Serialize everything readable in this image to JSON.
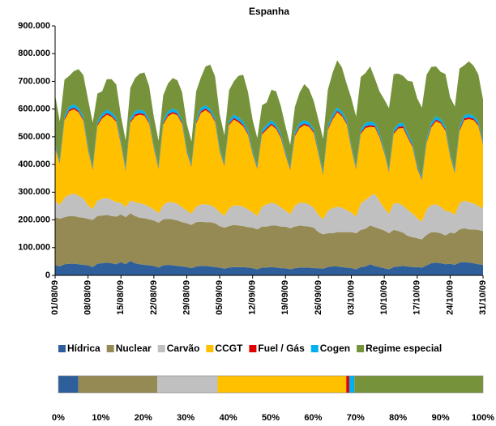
{
  "chart_data": [
    {
      "type": "stacked_area",
      "title": "Espanha",
      "categories": [
        "01/08/09",
        null,
        null,
        null,
        null,
        null,
        null,
        "08/08/09",
        null,
        null,
        null,
        null,
        null,
        null,
        "15/08/09",
        null,
        null,
        null,
        null,
        null,
        null,
        "22/08/09",
        null,
        null,
        null,
        null,
        null,
        null,
        "29/08/09",
        null,
        null,
        null,
        null,
        null,
        null,
        "05/09/09",
        null,
        null,
        null,
        null,
        null,
        null,
        "12/09/09",
        null,
        null,
        null,
        null,
        null,
        null,
        "19/09/09",
        null,
        null,
        null,
        null,
        null,
        null,
        "26/09/09",
        null,
        null,
        null,
        null,
        null,
        null,
        "03/10/09",
        null,
        null,
        null,
        null,
        null,
        null,
        "10/10/09",
        null,
        null,
        null,
        null,
        null,
        null,
        "17/10/09",
        null,
        null,
        null,
        null,
        null,
        null,
        "24/10/09",
        null,
        null,
        null,
        null,
        null,
        null,
        "31/10/09"
      ],
      "ylim": [
        0,
        900000
      ],
      "yticks": [
        {
          "value": 0,
          "label": "0"
        },
        {
          "value": 100000,
          "label": "100.000"
        },
        {
          "value": 200000,
          "label": "200.000"
        },
        {
          "value": 300000,
          "label": "300.000"
        },
        {
          "value": 400000,
          "label": "400.000"
        },
        {
          "value": 500000,
          "label": "500.000"
        },
        {
          "value": 600000,
          "label": "600.000"
        },
        {
          "value": 700000,
          "label": "700.000"
        },
        {
          "value": 800000,
          "label": "800.000"
        },
        {
          "value": 900000,
          "label": "900.000"
        }
      ],
      "grid": false,
      "legend": "bottom",
      "series": [
        {
          "name": "Hídrica",
          "color": "#2e5f9a",
          "values": [
            38000,
            32000,
            40000,
            42000,
            42000,
            40000,
            38000,
            36000,
            30000,
            42000,
            44000,
            46000,
            44000,
            40000,
            48000,
            40000,
            52000,
            44000,
            40000,
            38000,
            36000,
            34000,
            28000,
            36000,
            38000,
            36000,
            34000,
            32000,
            30000,
            26000,
            32000,
            34000,
            34000,
            32000,
            30000,
            28000,
            24000,
            28000,
            30000,
            30000,
            30000,
            28000,
            26000,
            22000,
            28000,
            28000,
            30000,
            28000,
            26000,
            26000,
            22000,
            26000,
            28000,
            28000,
            28000,
            26000,
            26000,
            24000,
            30000,
            32000,
            32000,
            30000,
            28000,
            26000,
            22000,
            30000,
            32000,
            40000,
            34000,
            30000,
            26000,
            22000,
            30000,
            32000,
            34000,
            32000,
            30000,
            30000,
            28000,
            36000,
            44000,
            46000,
            44000,
            40000,
            42000,
            38000,
            46000,
            48000,
            46000,
            44000,
            40000,
            38000
          ]
        },
        {
          "name": "Nuclear",
          "color": "#958a54",
          "values": [
            172000,
            172000,
            170000,
            172000,
            172000,
            170000,
            170000,
            168000,
            170000,
            172000,
            172000,
            172000,
            170000,
            172000,
            172000,
            170000,
            172000,
            170000,
            168000,
            168000,
            166000,
            164000,
            162000,
            166000,
            166000,
            166000,
            164000,
            160000,
            158000,
            156000,
            160000,
            160000,
            158000,
            160000,
            158000,
            150000,
            148000,
            150000,
            152000,
            150000,
            148000,
            146000,
            146000,
            144000,
            148000,
            148000,
            150000,
            152000,
            150000,
            150000,
            148000,
            150000,
            152000,
            150000,
            148000,
            146000,
            130000,
            124000,
            122000,
            120000,
            124000,
            126000,
            128000,
            130000,
            130000,
            134000,
            136000,
            140000,
            140000,
            138000,
            136000,
            130000,
            134000,
            128000,
            120000,
            110000,
            108000,
            104000,
            102000,
            110000,
            112000,
            110000,
            108000,
            104000,
            112000,
            114000,
            120000,
            122000,
            120000,
            122000,
            124000,
            122000
          ]
        },
        {
          "name": "Carvão",
          "color": "#c0c0c0",
          "values": [
            58000,
            50000,
            70000,
            78000,
            80000,
            78000,
            70000,
            48000,
            40000,
            56000,
            60000,
            62000,
            58000,
            52000,
            42000,
            36000,
            46000,
            50000,
            52000,
            50000,
            46000,
            40000,
            34000,
            52000,
            60000,
            62000,
            60000,
            54000,
            46000,
            40000,
            56000,
            62000,
            64000,
            62000,
            56000,
            50000,
            42000,
            64000,
            70000,
            72000,
            70000,
            64000,
            56000,
            48000,
            72000,
            80000,
            82000,
            78000,
            70000,
            58000,
            50000,
            76000,
            82000,
            84000,
            80000,
            72000,
            62000,
            54000,
            82000,
            90000,
            92000,
            88000,
            80000,
            70000,
            60000,
            96000,
            104000,
            106000,
            120000,
            100000,
            80000,
            70000,
            96000,
            100000,
            98000,
            94000,
            86000,
            72000,
            64000,
            92000,
            98000,
            100000,
            96000,
            88000,
            76000,
            66000,
            94000,
            100000,
            98000,
            94000,
            86000,
            82000
          ]
        },
        {
          "name": "CCGT",
          "color": "#ffc000",
          "values": [
            190000,
            150000,
            280000,
            300000,
            305000,
            300000,
            280000,
            200000,
            140000,
            270000,
            290000,
            300000,
            300000,
            290000,
            210000,
            130000,
            280000,
            310000,
            320000,
            320000,
            300000,
            220000,
            160000,
            290000,
            310000,
            320000,
            320000,
            300000,
            210000,
            170000,
            300000,
            330000,
            340000,
            330000,
            310000,
            220000,
            180000,
            300000,
            310000,
            300000,
            290000,
            270000,
            210000,
            170000,
            260000,
            270000,
            280000,
            270000,
            250000,
            200000,
            160000,
            250000,
            270000,
            280000,
            280000,
            270000,
            220000,
            160000,
            290000,
            320000,
            340000,
            330000,
            310000,
            230000,
            170000,
            250000,
            260000,
            250000,
            240000,
            230000,
            200000,
            150000,
            250000,
            270000,
            280000,
            260000,
            240000,
            180000,
            150000,
            240000,
            280000,
            300000,
            300000,
            290000,
            200000,
            150000,
            260000,
            290000,
            300000,
            300000,
            290000,
            230000
          ]
        },
        {
          "name": "Fuel / Gás",
          "color": "#e00000",
          "values": [
            4000,
            3000,
            5000,
            6000,
            6000,
            5000,
            5000,
            4000,
            3000,
            5000,
            6000,
            6000,
            5000,
            5000,
            4000,
            3000,
            5000,
            6000,
            6000,
            5000,
            5000,
            4000,
            3000,
            5000,
            6000,
            6000,
            5000,
            5000,
            4000,
            3000,
            5000,
            6000,
            6000,
            5000,
            5000,
            4000,
            3000,
            5000,
            6000,
            6000,
            5000,
            5000,
            4000,
            3000,
            5000,
            6000,
            6000,
            5000,
            5000,
            4000,
            3000,
            5000,
            6000,
            6000,
            5000,
            5000,
            4000,
            3000,
            5000,
            6000,
            6000,
            5000,
            5000,
            4000,
            3000,
            5000,
            6000,
            6000,
            5000,
            5000,
            4000,
            3000,
            5000,
            6000,
            6000,
            5000,
            5000,
            4000,
            3000,
            5000,
            6000,
            6000,
            5000,
            5000,
            4000,
            3000,
            5000,
            6000,
            6000,
            5000,
            5000,
            4000
          ]
        },
        {
          "name": "Cogen",
          "color": "#00b0f0",
          "values": [
            9000,
            8000,
            11000,
            12000,
            12000,
            11000,
            10000,
            9000,
            8000,
            11000,
            12000,
            12000,
            11000,
            10000,
            9000,
            8000,
            11000,
            12000,
            12000,
            11000,
            10000,
            9000,
            8000,
            11000,
            12000,
            12000,
            11000,
            10000,
            9000,
            8000,
            11000,
            12000,
            12000,
            11000,
            10000,
            9000,
            8000,
            11000,
            12000,
            12000,
            11000,
            10000,
            9000,
            8000,
            11000,
            12000,
            12000,
            11000,
            10000,
            9000,
            8000,
            11000,
            12000,
            12000,
            11000,
            10000,
            9000,
            8000,
            11000,
            12000,
            12000,
            11000,
            10000,
            9000,
            8000,
            11000,
            12000,
            12000,
            11000,
            10000,
            9000,
            8000,
            11000,
            12000,
            12000,
            11000,
            10000,
            9000,
            8000,
            11000,
            12000,
            12000,
            11000,
            10000,
            9000,
            8000,
            11000,
            12000,
            12000,
            11000,
            10000,
            9000
          ]
        },
        {
          "name": "Regime especial",
          "color": "#76933c",
          "values": [
            180000,
            140000,
            130000,
            110000,
            120000,
            140000,
            150000,
            170000,
            160000,
            100000,
            80000,
            110000,
            120000,
            120000,
            90000,
            100000,
            110000,
            120000,
            130000,
            140000,
            120000,
            100000,
            90000,
            90000,
            100000,
            110000,
            110000,
            100000,
            90000,
            80000,
            100000,
            110000,
            140000,
            160000,
            150000,
            120000,
            100000,
            110000,
            120000,
            150000,
            170000,
            140000,
            110000,
            100000,
            90000,
            80000,
            110000,
            120000,
            100000,
            90000,
            80000,
            90000,
            110000,
            130000,
            120000,
            100000,
            110000,
            120000,
            130000,
            150000,
            170000,
            160000,
            130000,
            170000,
            180000,
            190000,
            180000,
            200000,
            160000,
            150000,
            180000,
            220000,
            200000,
            180000,
            170000,
            190000,
            220000,
            240000,
            250000,
            230000,
            200000,
            180000,
            170000,
            190000,
            200000,
            230000,
            210000,
            180000,
            190000,
            180000,
            170000,
            150000
          ]
        }
      ]
    },
    {
      "type": "stacked_bar_h",
      "xlim": [
        0,
        100
      ],
      "xticks": [
        {
          "value": 0,
          "label": "0%"
        },
        {
          "value": 10,
          "label": "10%"
        },
        {
          "value": 20,
          "label": "20%"
        },
        {
          "value": 30,
          "label": "30%"
        },
        {
          "value": 40,
          "label": "40%"
        },
        {
          "value": 50,
          "label": "50%"
        },
        {
          "value": 60,
          "label": "60%"
        },
        {
          "value": 70,
          "label": "70%"
        },
        {
          "value": 80,
          "label": "80%"
        },
        {
          "value": 90,
          "label": "90%"
        },
        {
          "value": 100,
          "label": "100%"
        }
      ],
      "series": [
        {
          "color": "#2e5f9a",
          "values": [
            4.7
          ]
        },
        {
          "color": "#958a54",
          "values": [
            18.6
          ]
        },
        {
          "color": "#c0c0c0",
          "values": [
            14.2
          ]
        },
        {
          "color": "#ffc000",
          "values": [
            30.3
          ]
        },
        {
          "color": "#e00000",
          "values": [
            0.7
          ]
        },
        {
          "color": "#00b0f0",
          "values": [
            1.2
          ]
        },
        {
          "color": "#76933c",
          "values": [
            30.3
          ]
        }
      ]
    }
  ]
}
